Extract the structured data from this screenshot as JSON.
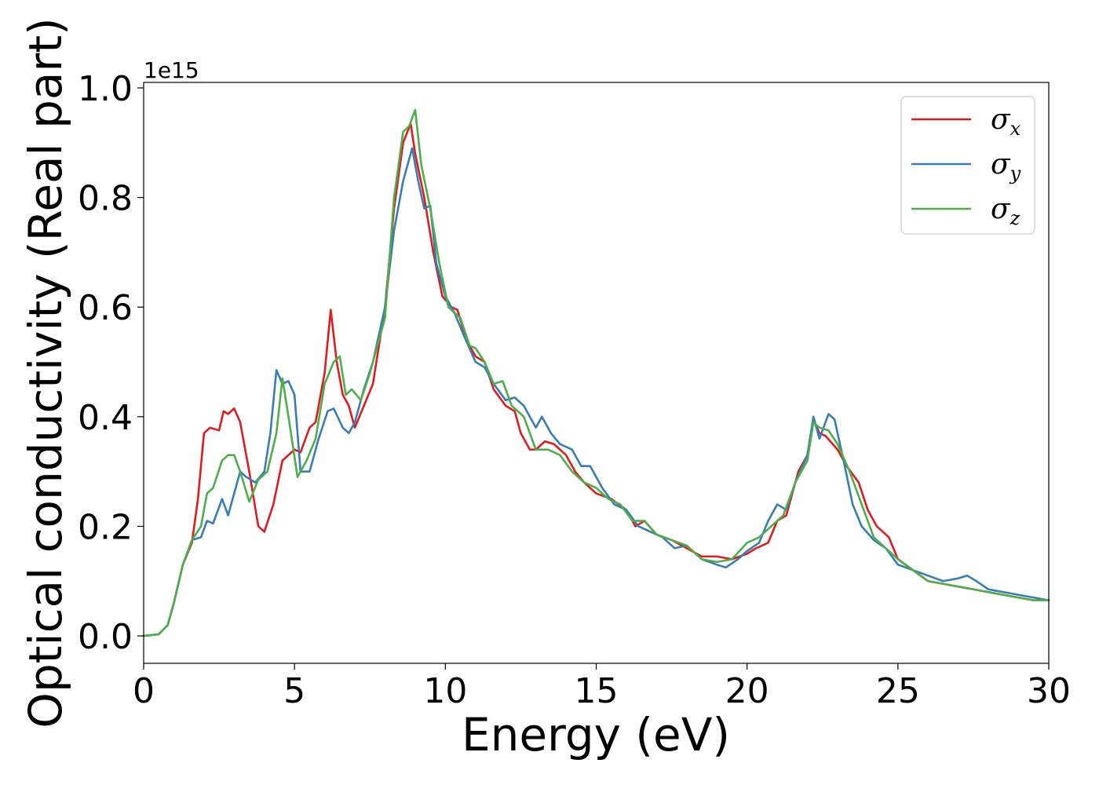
{
  "chart_data": {
    "type": "line",
    "xlabel": "Energy (eV)",
    "ylabel": "Optical conductivity (Real part)",
    "y_offset_label": "1e15",
    "xlim": [
      0,
      30
    ],
    "ylim": [
      -0.05,
      1.01
    ],
    "y_scale_factor": 1000000000000000.0,
    "xticks": [
      0,
      5,
      10,
      15,
      20,
      25,
      30
    ],
    "xtick_labels": [
      "0",
      "5",
      "10",
      "15",
      "20",
      "25",
      "30"
    ],
    "yticks": [
      0.0,
      0.2,
      0.4,
      0.6,
      0.8,
      1.0
    ],
    "ytick_labels": [
      "0.0",
      "0.2",
      "0.4",
      "0.6",
      "0.8",
      "1.0"
    ],
    "grid": false,
    "legend_position": "top-right",
    "series": [
      {
        "name": "σx",
        "legend_base": "σ",
        "legend_sub": "x",
        "color": "#e41a1c",
        "points": [
          [
            0,
            0
          ],
          [
            0.5,
            0.003
          ],
          [
            0.8,
            0.02
          ],
          [
            1.0,
            0.06
          ],
          [
            1.3,
            0.13
          ],
          [
            1.6,
            0.17
          ],
          [
            1.8,
            0.25
          ],
          [
            2.0,
            0.37
          ],
          [
            2.2,
            0.38
          ],
          [
            2.5,
            0.375
          ],
          [
            2.65,
            0.41
          ],
          [
            2.8,
            0.405
          ],
          [
            3.0,
            0.415
          ],
          [
            3.2,
            0.39
          ],
          [
            3.5,
            0.3
          ],
          [
            3.8,
            0.2
          ],
          [
            4.0,
            0.19
          ],
          [
            4.3,
            0.24
          ],
          [
            4.6,
            0.32
          ],
          [
            4.8,
            0.33
          ],
          [
            5.0,
            0.34
          ],
          [
            5.2,
            0.335
          ],
          [
            5.5,
            0.38
          ],
          [
            5.7,
            0.39
          ],
          [
            6.0,
            0.48
          ],
          [
            6.2,
            0.595
          ],
          [
            6.4,
            0.5
          ],
          [
            6.6,
            0.44
          ],
          [
            6.8,
            0.42
          ],
          [
            7.0,
            0.38
          ],
          [
            7.3,
            0.42
          ],
          [
            7.6,
            0.46
          ],
          [
            8.0,
            0.6
          ],
          [
            8.3,
            0.78
          ],
          [
            8.6,
            0.9
          ],
          [
            8.85,
            0.935
          ],
          [
            9.0,
            0.88
          ],
          [
            9.3,
            0.8
          ],
          [
            9.6,
            0.7
          ],
          [
            9.9,
            0.62
          ],
          [
            10.2,
            0.6
          ],
          [
            10.4,
            0.595
          ],
          [
            10.7,
            0.54
          ],
          [
            11.0,
            0.51
          ],
          [
            11.3,
            0.5
          ],
          [
            11.6,
            0.45
          ],
          [
            12.0,
            0.42
          ],
          [
            12.3,
            0.41
          ],
          [
            12.5,
            0.37
          ],
          [
            12.8,
            0.34
          ],
          [
            13.0,
            0.34
          ],
          [
            13.3,
            0.355
          ],
          [
            13.6,
            0.35
          ],
          [
            14.0,
            0.33
          ],
          [
            14.3,
            0.3
          ],
          [
            14.6,
            0.28
          ],
          [
            15.0,
            0.26
          ],
          [
            15.5,
            0.25
          ],
          [
            16.0,
            0.23
          ],
          [
            16.3,
            0.2
          ],
          [
            16.6,
            0.21
          ],
          [
            17.0,
            0.185
          ],
          [
            17.5,
            0.175
          ],
          [
            18.0,
            0.16
          ],
          [
            18.5,
            0.145
          ],
          [
            19.0,
            0.145
          ],
          [
            19.5,
            0.14
          ],
          [
            20.0,
            0.15
          ],
          [
            20.3,
            0.16
          ],
          [
            20.7,
            0.17
          ],
          [
            21.0,
            0.21
          ],
          [
            21.3,
            0.22
          ],
          [
            21.7,
            0.3
          ],
          [
            22.0,
            0.33
          ],
          [
            22.2,
            0.395
          ],
          [
            22.4,
            0.37
          ],
          [
            22.6,
            0.365
          ],
          [
            23.0,
            0.34
          ],
          [
            23.3,
            0.31
          ],
          [
            23.7,
            0.28
          ],
          [
            24.0,
            0.23
          ],
          [
            24.3,
            0.2
          ],
          [
            24.7,
            0.18
          ],
          [
            25.0,
            0.14
          ],
          [
            25.5,
            0.12
          ],
          [
            26.0,
            0.1
          ],
          [
            26.5,
            0.095
          ],
          [
            27.0,
            0.09
          ],
          [
            27.5,
            0.085
          ],
          [
            28.0,
            0.08
          ],
          [
            28.5,
            0.075
          ],
          [
            29.0,
            0.07
          ],
          [
            29.5,
            0.065
          ],
          [
            30.0,
            0.065
          ]
        ]
      },
      {
        "name": "σy",
        "legend_base": "σ",
        "legend_sub": "y",
        "color": "#377eb8",
        "points": [
          [
            0,
            0
          ],
          [
            0.5,
            0.003
          ],
          [
            0.8,
            0.02
          ],
          [
            1.0,
            0.06
          ],
          [
            1.3,
            0.13
          ],
          [
            1.6,
            0.175
          ],
          [
            1.9,
            0.18
          ],
          [
            2.1,
            0.21
          ],
          [
            2.3,
            0.205
          ],
          [
            2.6,
            0.25
          ],
          [
            2.8,
            0.22
          ],
          [
            3.0,
            0.26
          ],
          [
            3.2,
            0.3
          ],
          [
            3.4,
            0.29
          ],
          [
            3.7,
            0.28
          ],
          [
            4.0,
            0.3
          ],
          [
            4.2,
            0.37
          ],
          [
            4.4,
            0.485
          ],
          [
            4.6,
            0.46
          ],
          [
            4.8,
            0.465
          ],
          [
            5.0,
            0.44
          ],
          [
            5.2,
            0.3
          ],
          [
            5.5,
            0.3
          ],
          [
            5.8,
            0.36
          ],
          [
            6.1,
            0.41
          ],
          [
            6.3,
            0.415
          ],
          [
            6.6,
            0.38
          ],
          [
            6.8,
            0.37
          ],
          [
            7.0,
            0.39
          ],
          [
            7.3,
            0.45
          ],
          [
            7.6,
            0.5
          ],
          [
            8.0,
            0.6
          ],
          [
            8.3,
            0.74
          ],
          [
            8.6,
            0.83
          ],
          [
            8.9,
            0.89
          ],
          [
            9.1,
            0.83
          ],
          [
            9.3,
            0.78
          ],
          [
            9.5,
            0.785
          ],
          [
            9.7,
            0.68
          ],
          [
            10.0,
            0.62
          ],
          [
            10.3,
            0.59
          ],
          [
            10.6,
            0.55
          ],
          [
            11.0,
            0.5
          ],
          [
            11.3,
            0.49
          ],
          [
            11.6,
            0.46
          ],
          [
            12.0,
            0.43
          ],
          [
            12.3,
            0.435
          ],
          [
            12.6,
            0.42
          ],
          [
            13.0,
            0.38
          ],
          [
            13.2,
            0.4
          ],
          [
            13.5,
            0.37
          ],
          [
            13.8,
            0.35
          ],
          [
            14.2,
            0.34
          ],
          [
            14.5,
            0.31
          ],
          [
            14.8,
            0.31
          ],
          [
            15.2,
            0.27
          ],
          [
            15.6,
            0.24
          ],
          [
            16.0,
            0.23
          ],
          [
            16.4,
            0.2
          ],
          [
            16.8,
            0.19
          ],
          [
            17.2,
            0.18
          ],
          [
            17.6,
            0.16
          ],
          [
            18.0,
            0.165
          ],
          [
            18.5,
            0.14
          ],
          [
            19.0,
            0.13
          ],
          [
            19.3,
            0.125
          ],
          [
            19.7,
            0.14
          ],
          [
            20.0,
            0.155
          ],
          [
            20.4,
            0.17
          ],
          [
            20.7,
            0.21
          ],
          [
            21.0,
            0.24
          ],
          [
            21.3,
            0.23
          ],
          [
            21.6,
            0.28
          ],
          [
            22.0,
            0.33
          ],
          [
            22.2,
            0.4
          ],
          [
            22.4,
            0.36
          ],
          [
            22.7,
            0.405
          ],
          [
            22.9,
            0.395
          ],
          [
            23.2,
            0.32
          ],
          [
            23.5,
            0.24
          ],
          [
            23.8,
            0.2
          ],
          [
            24.2,
            0.175
          ],
          [
            24.6,
            0.16
          ],
          [
            25.0,
            0.13
          ],
          [
            25.5,
            0.12
          ],
          [
            26.0,
            0.11
          ],
          [
            26.5,
            0.1
          ],
          [
            27.0,
            0.105
          ],
          [
            27.3,
            0.11
          ],
          [
            27.6,
            0.1
          ],
          [
            28.0,
            0.085
          ],
          [
            28.5,
            0.08
          ],
          [
            29.0,
            0.075
          ],
          [
            29.5,
            0.07
          ],
          [
            30.0,
            0.065
          ]
        ]
      },
      {
        "name": "σz",
        "legend_base": "σ",
        "legend_sub": "z",
        "color": "#4daf4a",
        "points": [
          [
            0,
            0
          ],
          [
            0.5,
            0.003
          ],
          [
            0.8,
            0.02
          ],
          [
            1.0,
            0.06
          ],
          [
            1.3,
            0.13
          ],
          [
            1.6,
            0.175
          ],
          [
            1.9,
            0.2
          ],
          [
            2.1,
            0.26
          ],
          [
            2.3,
            0.27
          ],
          [
            2.6,
            0.32
          ],
          [
            2.8,
            0.33
          ],
          [
            3.0,
            0.33
          ],
          [
            3.2,
            0.3
          ],
          [
            3.5,
            0.245
          ],
          [
            3.8,
            0.285
          ],
          [
            4.1,
            0.3
          ],
          [
            4.4,
            0.37
          ],
          [
            4.6,
            0.47
          ],
          [
            4.8,
            0.4
          ],
          [
            5.1,
            0.29
          ],
          [
            5.4,
            0.32
          ],
          [
            5.7,
            0.36
          ],
          [
            6.0,
            0.46
          ],
          [
            6.3,
            0.5
          ],
          [
            6.5,
            0.51
          ],
          [
            6.7,
            0.44
          ],
          [
            6.9,
            0.45
          ],
          [
            7.2,
            0.43
          ],
          [
            7.5,
            0.48
          ],
          [
            8.0,
            0.58
          ],
          [
            8.3,
            0.8
          ],
          [
            8.6,
            0.92
          ],
          [
            8.8,
            0.93
          ],
          [
            9.0,
            0.96
          ],
          [
            9.2,
            0.86
          ],
          [
            9.5,
            0.78
          ],
          [
            9.8,
            0.68
          ],
          [
            10.1,
            0.6
          ],
          [
            10.5,
            0.58
          ],
          [
            10.8,
            0.53
          ],
          [
            11.0,
            0.525
          ],
          [
            11.3,
            0.5
          ],
          [
            11.6,
            0.46
          ],
          [
            11.9,
            0.465
          ],
          [
            12.2,
            0.42
          ],
          [
            12.6,
            0.4
          ],
          [
            13.0,
            0.34
          ],
          [
            13.4,
            0.34
          ],
          [
            13.8,
            0.33
          ],
          [
            14.2,
            0.3
          ],
          [
            14.6,
            0.28
          ],
          [
            15.0,
            0.27
          ],
          [
            15.4,
            0.25
          ],
          [
            15.8,
            0.24
          ],
          [
            16.2,
            0.21
          ],
          [
            16.6,
            0.21
          ],
          [
            17.0,
            0.185
          ],
          [
            17.5,
            0.175
          ],
          [
            18.0,
            0.165
          ],
          [
            18.5,
            0.14
          ],
          [
            19.0,
            0.135
          ],
          [
            19.5,
            0.14
          ],
          [
            20.0,
            0.17
          ],
          [
            20.4,
            0.18
          ],
          [
            20.8,
            0.2
          ],
          [
            21.2,
            0.22
          ],
          [
            21.6,
            0.28
          ],
          [
            22.0,
            0.32
          ],
          [
            22.2,
            0.39
          ],
          [
            22.4,
            0.38
          ],
          [
            22.7,
            0.375
          ],
          [
            23.0,
            0.35
          ],
          [
            23.4,
            0.3
          ],
          [
            23.8,
            0.24
          ],
          [
            24.2,
            0.18
          ],
          [
            24.6,
            0.16
          ],
          [
            25.0,
            0.14
          ],
          [
            25.5,
            0.12
          ],
          [
            26.0,
            0.1
          ],
          [
            26.5,
            0.095
          ],
          [
            27.0,
            0.09
          ],
          [
            27.5,
            0.085
          ],
          [
            28.0,
            0.08
          ],
          [
            28.5,
            0.075
          ],
          [
            29.0,
            0.07
          ],
          [
            29.5,
            0.065
          ],
          [
            30.0,
            0.065
          ]
        ]
      }
    ]
  }
}
